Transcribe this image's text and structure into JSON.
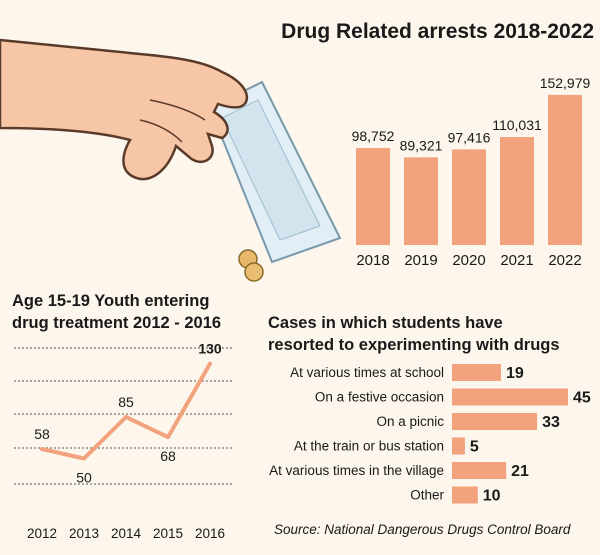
{
  "colors": {
    "background": "#fdf6ec",
    "bar": "#f2a27c",
    "line": "#f2a27c",
    "text": "#1a1a1a",
    "grid": "#555555"
  },
  "illustration": "hand-holding-drug-bag-icon",
  "source": "Source: National Dangerous Drugs Control Board",
  "chart_data": [
    {
      "type": "bar",
      "title": "Drug Related arrests 2018-2022",
      "categories": [
        "2018",
        "2019",
        "2020",
        "2021",
        "2022"
      ],
      "values": [
        98752,
        89321,
        97416,
        110031,
        152979
      ],
      "value_labels": [
        "98,752",
        "89,321",
        "97,416",
        "110,031",
        "152,979"
      ],
      "ylim": [
        0,
        160000
      ],
      "grid": false,
      "legend": "none"
    },
    {
      "type": "line",
      "title": "Age 15-19 Youth entering drug treatment 2012 - 2016",
      "title_lines": [
        "Age 15-19 Youth entering",
        "drug treatment 2012 - 2016"
      ],
      "x": [
        "2012",
        "2013",
        "2014",
        "2015",
        "2016"
      ],
      "values": [
        58,
        50,
        85,
        68,
        130
      ],
      "ylim": [
        20,
        150
      ],
      "grid": true,
      "legend": "none"
    },
    {
      "type": "bar",
      "orientation": "horizontal",
      "title": "Cases in which students have resorted to experimenting with drugs",
      "title_lines": [
        "Cases in which students have",
        "resorted to experimenting with drugs"
      ],
      "categories": [
        "At various times at school",
        "On a festive occasion",
        "On a picnic",
        "At the train or bus station",
        "At various times in the village",
        "Other"
      ],
      "values": [
        19,
        45,
        33,
        5,
        21,
        10
      ],
      "xlim": [
        0,
        45
      ],
      "grid": false,
      "legend": "none"
    }
  ]
}
